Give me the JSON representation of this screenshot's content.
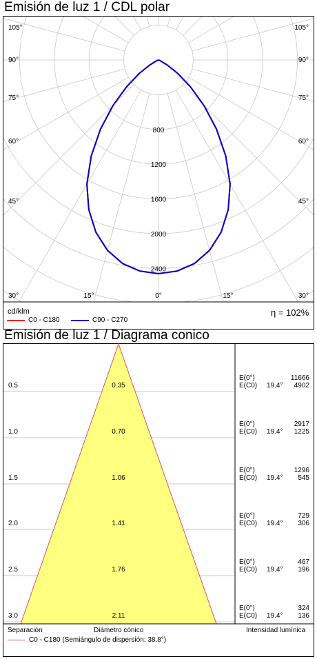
{
  "colors": {
    "c0": "#ff0000",
    "c90": "#0000cc",
    "grid": "#c8c8c8",
    "cone_fill": "#ffff80",
    "cone_edge": "#e0506a"
  },
  "polar": {
    "title": "Emisión de luz 1 / CDL polar",
    "unit": "cd/klm",
    "efficiency": "η = 102%",
    "legend": [
      {
        "label": "C0 - C180",
        "color": "#ff0000"
      },
      {
        "label": "C90 - C270",
        "color": "#0000cc"
      }
    ]
  },
  "cone": {
    "title": "Emisión de luz 1 / Diagrama conico",
    "footer_sep": "Separación",
    "footer_diam": "Diámetro cónico",
    "footer_int": "Intensidad lumínica",
    "legend": "C0 - C180 (Semiángulo de dispersión: 38.8°)",
    "e_label": "E(0°)",
    "ec_label": "E(C0)",
    "half_angle_label": "19.4°"
  },
  "chart_data": [
    {
      "type": "polar",
      "title": "Emisión de luz 1 / CDL polar",
      "unit": "cd/klm",
      "radial_ticks": [
        800,
        1200,
        1600,
        2000,
        2400
      ],
      "angle_labels": [
        "105°",
        "90°",
        "75°",
        "60°",
        "45°",
        "30°",
        "15°",
        "0°",
        "15°",
        "30°",
        "45°",
        "60°",
        "75°",
        "90°",
        "105°"
      ],
      "series": [
        {
          "name": "C0 - C180",
          "color": "#ff0000",
          "angles_deg": [
            0,
            5,
            10,
            15,
            20,
            25,
            30,
            35,
            40,
            45,
            50,
            55,
            60,
            70,
            80,
            90
          ],
          "values": [
            2460,
            2440,
            2380,
            2270,
            2110,
            1900,
            1650,
            1350,
            1040,
            740,
            480,
            270,
            120,
            20,
            0,
            0
          ]
        },
        {
          "name": "C90 - C270",
          "color": "#0000cc",
          "angles_deg": [
            0,
            5,
            10,
            15,
            20,
            25,
            30,
            35,
            40,
            45,
            50,
            55,
            60,
            70,
            80,
            90
          ],
          "values": [
            2460,
            2440,
            2380,
            2270,
            2110,
            1900,
            1650,
            1350,
            1040,
            740,
            480,
            270,
            120,
            20,
            0,
            0
          ]
        }
      ],
      "efficiency": "η = 102%"
    },
    {
      "type": "table",
      "title": "Emisión de luz 1 / Diagrama conico",
      "half_angle_deg": 19.4,
      "rows": [
        {
          "separation": "0.5",
          "diameter": "0.35",
          "e0": "11666",
          "ec0": "4902"
        },
        {
          "separation": "1.0",
          "diameter": "0.70",
          "e0": "2917",
          "ec0": "1225"
        },
        {
          "separation": "1.5",
          "diameter": "1.06",
          "e0": "1296",
          "ec0": "545"
        },
        {
          "separation": "2.0",
          "diameter": "1.41",
          "e0": "729",
          "ec0": "306"
        },
        {
          "separation": "2.5",
          "diameter": "1.76",
          "e0": "467",
          "ec0": "196"
        },
        {
          "separation": "3.0",
          "diameter": "2.11",
          "e0": "324",
          "ec0": "136"
        }
      ]
    }
  ]
}
